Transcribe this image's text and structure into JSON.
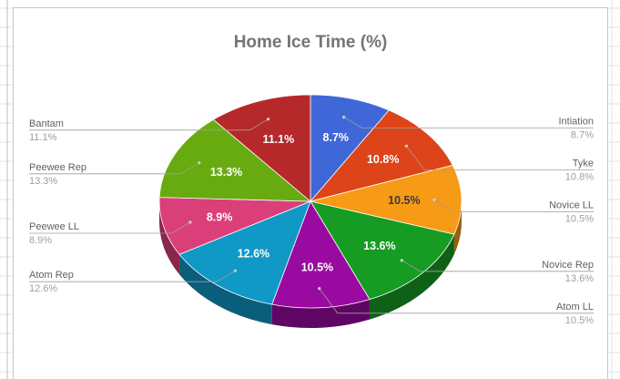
{
  "colors": {
    "background": "#ffffff",
    "frame": "#c7c7c7",
    "leader": "#9e9e9e"
  },
  "chart_data": {
    "type": "pie",
    "style": "3d",
    "title": "Home Ice Time (%)",
    "legend": "side labels with leader lines",
    "slices": [
      {
        "label": "Intiation",
        "value": 8.7,
        "display": "8.7%",
        "color": "#3f67d8",
        "side": "right"
      },
      {
        "label": "Tyke",
        "value": 10.8,
        "display": "10.8%",
        "color": "#dd4419",
        "side": "right"
      },
      {
        "label": "Novice LL",
        "value": 10.5,
        "display": "10.5%",
        "color": "#f79a15",
        "side": "right"
      },
      {
        "label": "Novice Rep",
        "value": 13.6,
        "display": "13.6%",
        "color": "#169c23",
        "side": "right"
      },
      {
        "label": "Atom LL",
        "value": 10.5,
        "display": "10.5%",
        "color": "#990aa1",
        "side": "right"
      },
      {
        "label": "Atom Rep",
        "value": 12.6,
        "display": "12.6%",
        "color": "#1098c7",
        "side": "left"
      },
      {
        "label": "Peewee LL",
        "value": 8.9,
        "display": "8.9%",
        "color": "#db3f79",
        "side": "left"
      },
      {
        "label": "Peewee Rep",
        "value": 13.3,
        "display": "13.3%",
        "color": "#68ab11",
        "side": "left"
      },
      {
        "label": "Bantam",
        "value": 11.1,
        "display": "11.1%",
        "color": "#b6292b",
        "side": "left"
      }
    ]
  }
}
